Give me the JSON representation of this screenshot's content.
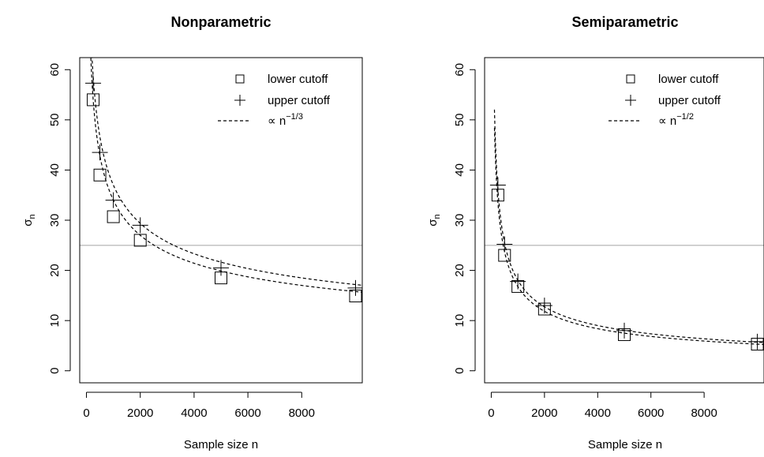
{
  "chart_data": [
    {
      "type": "scatter",
      "title": "Nonparametric",
      "xlabel": "Sample size n",
      "ylabel_main": "σ",
      "ylabel_sub": "n",
      "xlim": [
        0,
        10000
      ],
      "ylim": [
        0,
        60
      ],
      "x_ticks": [
        0,
        2000,
        4000,
        6000,
        8000
      ],
      "y_ticks": [
        0,
        10,
        20,
        30,
        40,
        50,
        60
      ],
      "reference_line_y": 25,
      "series": [
        {
          "name": "lower cutoff",
          "marker": "square",
          "x": [
            250,
            500,
            1000,
            2000,
            5000,
            10000
          ],
          "y": [
            54,
            39,
            30.7,
            26,
            18.5,
            14.9
          ]
        },
        {
          "name": "upper cutoff",
          "marker": "plus",
          "x": [
            250,
            500,
            1000,
            2000,
            5000,
            10000
          ],
          "y": [
            57.3,
            43.5,
            34,
            29,
            20.5,
            16.5
          ]
        }
      ],
      "fit_curves": [
        {
          "series": "lower cutoff",
          "coef": 340,
          "exponent": -0.3333
        },
        {
          "series": "upper cutoff",
          "coef": 370,
          "exponent": -0.3333
        }
      ],
      "fit_legend": {
        "prefix": "∝ n",
        "exponent": "−1/3"
      },
      "legend_position": "top-right"
    },
    {
      "type": "scatter",
      "title": "Semiparametric",
      "xlabel": "Sample size n",
      "ylabel_main": "σ",
      "ylabel_sub": "n",
      "xlim": [
        0,
        10000
      ],
      "ylim": [
        0,
        60
      ],
      "x_ticks": [
        0,
        2000,
        4000,
        6000,
        8000
      ],
      "y_ticks": [
        0,
        10,
        20,
        30,
        40,
        50,
        60
      ],
      "reference_line_y": 25,
      "series": [
        {
          "name": "lower cutoff",
          "marker": "square",
          "x": [
            250,
            500,
            1000,
            2000,
            5000,
            10000
          ],
          "y": [
            35,
            23,
            16.8,
            12.3,
            7.2,
            5.3
          ]
        },
        {
          "name": "upper cutoff",
          "marker": "plus",
          "x": [
            250,
            500,
            1000,
            2000,
            5000,
            10000
          ],
          "y": [
            37,
            25.2,
            17.8,
            13,
            8,
            5.8
          ]
        }
      ],
      "fit_curves": [
        {
          "series": "lower cutoff",
          "coef": 530,
          "exponent": -0.5
        },
        {
          "series": "upper cutoff",
          "coef": 570,
          "exponent": -0.5
        }
      ],
      "fit_legend": {
        "prefix": "∝ n",
        "exponent": "−1/2"
      },
      "legend_position": "top-right"
    }
  ]
}
